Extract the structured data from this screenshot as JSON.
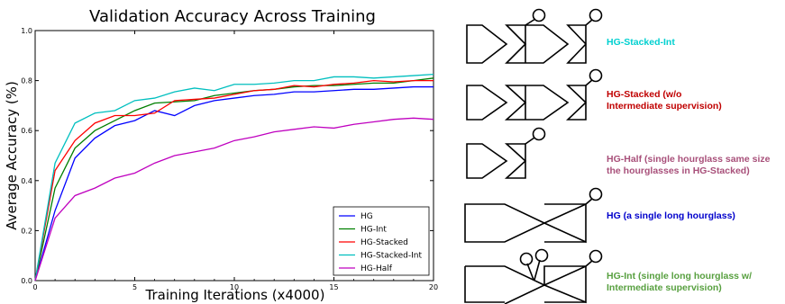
{
  "chart_data": {
    "type": "line",
    "title": "Validation Accuracy Across Training",
    "xlabel": "Training Iterations (x4000)",
    "ylabel": "Average Accuracy (%)",
    "xlim": [
      0,
      20
    ],
    "ylim": [
      0.0,
      1.0
    ],
    "xticks": [
      "0",
      "5",
      "10",
      "15",
      "20"
    ],
    "yticks": [
      "0.0",
      "0.2",
      "0.4",
      "0.6",
      "0.8",
      "1.0"
    ],
    "grid": false,
    "legend_position": "bottom-right",
    "x": [
      0,
      1,
      2,
      3,
      4,
      5,
      6,
      7,
      8,
      9,
      10,
      11,
      12,
      13,
      14,
      15,
      16,
      17,
      18,
      19,
      20
    ],
    "series": [
      {
        "name": "HG",
        "color": "#0000ff",
        "values": [
          0.0,
          0.28,
          0.49,
          0.57,
          0.62,
          0.64,
          0.68,
          0.66,
          0.7,
          0.72,
          0.73,
          0.74,
          0.745,
          0.755,
          0.755,
          0.76,
          0.765,
          0.765,
          0.77,
          0.775,
          0.775
        ]
      },
      {
        "name": "HG-Int",
        "color": "#007f00",
        "values": [
          0.0,
          0.37,
          0.53,
          0.6,
          0.64,
          0.68,
          0.71,
          0.715,
          0.72,
          0.74,
          0.75,
          0.76,
          0.765,
          0.775,
          0.78,
          0.78,
          0.785,
          0.79,
          0.79,
          0.8,
          0.81
        ]
      },
      {
        "name": "HG-Stacked",
        "color": "#ff0000",
        "values": [
          0.0,
          0.44,
          0.56,
          0.63,
          0.66,
          0.66,
          0.67,
          0.72,
          0.725,
          0.73,
          0.745,
          0.76,
          0.765,
          0.78,
          0.775,
          0.785,
          0.79,
          0.8,
          0.795,
          0.8,
          0.8
        ]
      },
      {
        "name": "HG-Stacked-Int",
        "color": "#00bfbf",
        "values": [
          0.0,
          0.47,
          0.63,
          0.67,
          0.68,
          0.72,
          0.73,
          0.755,
          0.77,
          0.76,
          0.785,
          0.785,
          0.79,
          0.8,
          0.8,
          0.815,
          0.815,
          0.81,
          0.815,
          0.82,
          0.825
        ]
      },
      {
        "name": "HG-Half",
        "color": "#bf00bf",
        "values": [
          0.0,
          0.25,
          0.34,
          0.37,
          0.41,
          0.43,
          0.47,
          0.5,
          0.515,
          0.53,
          0.56,
          0.575,
          0.595,
          0.605,
          0.615,
          0.61,
          0.625,
          0.635,
          0.645,
          0.65,
          0.645
        ]
      }
    ]
  },
  "diagram": {
    "labels": [
      {
        "key": "stacked_int",
        "lines": [
          "HG-Stacked-Int"
        ],
        "color": "#00d0d0"
      },
      {
        "key": "stacked",
        "lines": [
          "HG-Stacked (w/o",
          "Intermediate supervision)"
        ],
        "color": "#c00000"
      },
      {
        "key": "half",
        "lines": [
          "HG-Half (single hourglass same size",
          "the hourglasses in HG-Stacked)"
        ],
        "color": "#a8507a"
      },
      {
        "key": "hg",
        "lines": [
          "HG (a single long hourglass)"
        ],
        "color": "#0000cc"
      },
      {
        "key": "int",
        "lines": [
          "HG-Int (single long hourglass w/",
          "Intermediate supervision)"
        ],
        "color": "#58a040"
      }
    ]
  }
}
